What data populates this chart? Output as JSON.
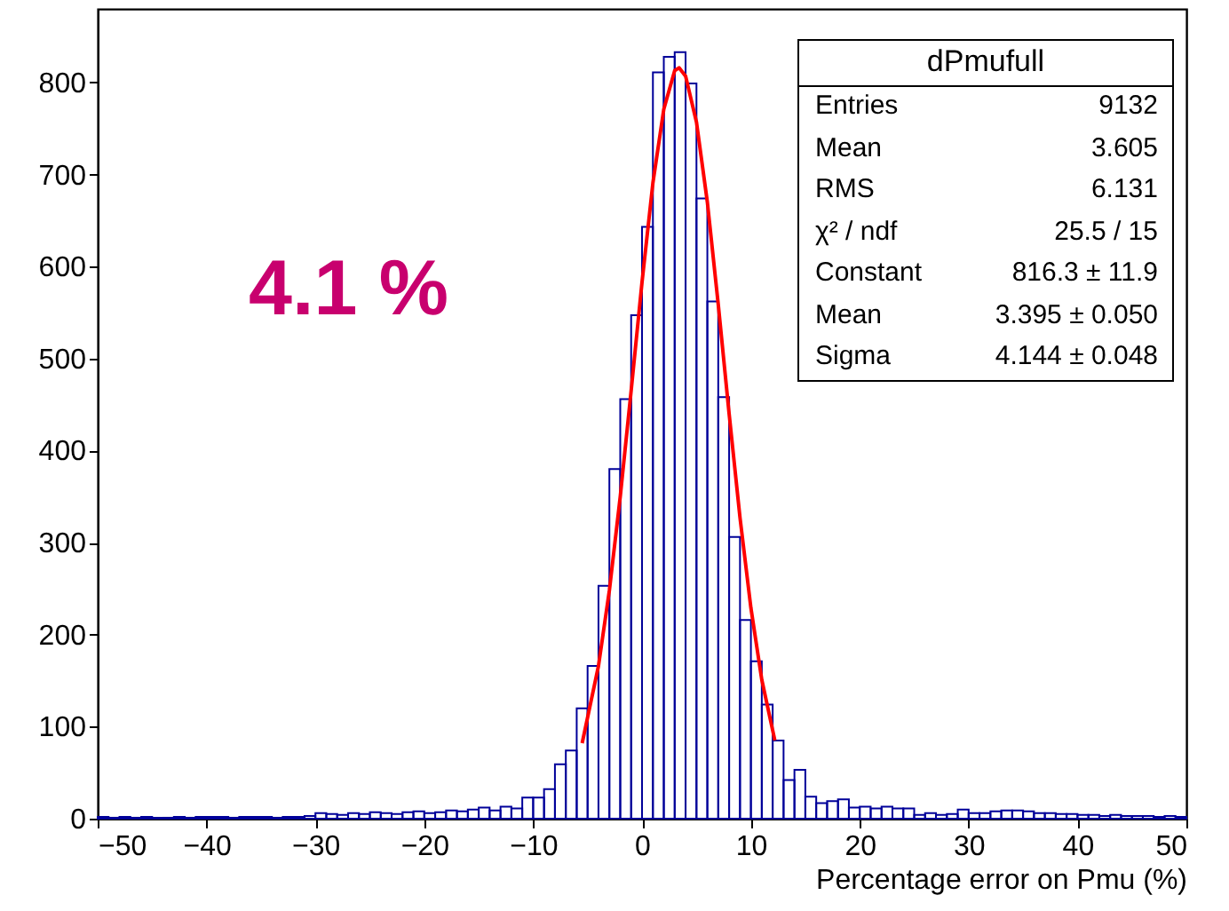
{
  "chart_data": {
    "type": "histogram",
    "xlabel": "Percentage error on Pmu (%)",
    "annotations": [
      "4.1 %",
      "dPmufull",
      "Entries",
      "9132",
      "Mean",
      "3.605",
      "RMS",
      "6.131",
      "χ² / ndf",
      "25.5 / 15",
      "Constant",
      "816.3 ± 11.9",
      "Mean",
      "3.395 ± 0.050",
      "Sigma",
      "4.144 ± 0.048"
    ],
    "bins": [
      -50,
      -49,
      -48,
      -47,
      -46,
      -45,
      -44,
      -43,
      -42,
      -41,
      -40,
      -39,
      -38,
      -37,
      -36,
      -35,
      -34,
      -33,
      -32,
      -31,
      -30,
      -29,
      -28,
      -27,
      -26,
      -25,
      -24,
      -23,
      -22,
      -21,
      -20,
      -19,
      -18,
      -17,
      -16,
      -15,
      -14,
      -13,
      -12,
      -11,
      -10,
      -9,
      -8,
      -7,
      -6,
      -5,
      -4,
      -3,
      -2,
      -1,
      0,
      1,
      2,
      3,
      4,
      5,
      6,
      7,
      8,
      9,
      10,
      11,
      12,
      13,
      14,
      15,
      16,
      17,
      18,
      19,
      20,
      21,
      22,
      23,
      24,
      25,
      26,
      27,
      28,
      29,
      30,
      31,
      32,
      33,
      34,
      35,
      36,
      37,
      38,
      39,
      40,
      41,
      42,
      43,
      44,
      45,
      46,
      47,
      48,
      49,
      50
    ],
    "values": [
      2,
      1,
      2,
      1,
      2,
      1,
      1,
      2,
      1,
      2,
      2,
      2,
      1,
      2,
      2,
      2,
      1,
      2,
      2,
      3,
      6,
      5,
      4,
      6,
      5,
      7,
      6,
      5,
      7,
      8,
      6,
      7,
      9,
      8,
      10,
      12,
      9,
      13,
      11,
      23,
      23,
      32,
      59,
      74,
      120,
      166,
      253,
      380,
      456,
      547,
      643,
      811,
      828,
      833,
      799,
      674,
      562,
      458,
      306,
      216,
      171,
      124,
      85,
      42,
      53,
      24,
      17,
      19,
      21,
      12,
      13,
      11,
      13,
      11,
      11,
      4,
      6,
      4,
      5,
      10,
      6,
      6,
      8,
      9,
      9,
      8,
      6,
      6,
      5,
      5,
      4,
      4,
      3,
      4,
      3,
      3,
      3,
      2,
      3,
      2
    ],
    "color": "#000099",
    "series": [
      {
        "type": "line",
        "color": "#ff0000",
        "x": [
          -5.5,
          -4,
          -3,
          -2,
          -1,
          0,
          1,
          2,
          3,
          3.4,
          4,
          5,
          6,
          7,
          8,
          9,
          10,
          11,
          12.2
        ],
        "values": [
          82,
          166,
          248,
          350,
          465,
          583,
          691,
          771,
          813,
          816,
          807,
          757,
          670,
          559,
          440,
          327,
          229,
          151,
          85
        ]
      }
    ],
    "xlim": [
      -50,
      50
    ],
    "xticks": [
      -50,
      -40,
      -30,
      -20,
      -10,
      0,
      10,
      20,
      30,
      40,
      50
    ],
    "ylim": [
      0,
      880
    ],
    "yticks": [
      0,
      100,
      200,
      300,
      400,
      500,
      600,
      700,
      800
    ],
    "grid": false,
    "marker": "none"
  }
}
